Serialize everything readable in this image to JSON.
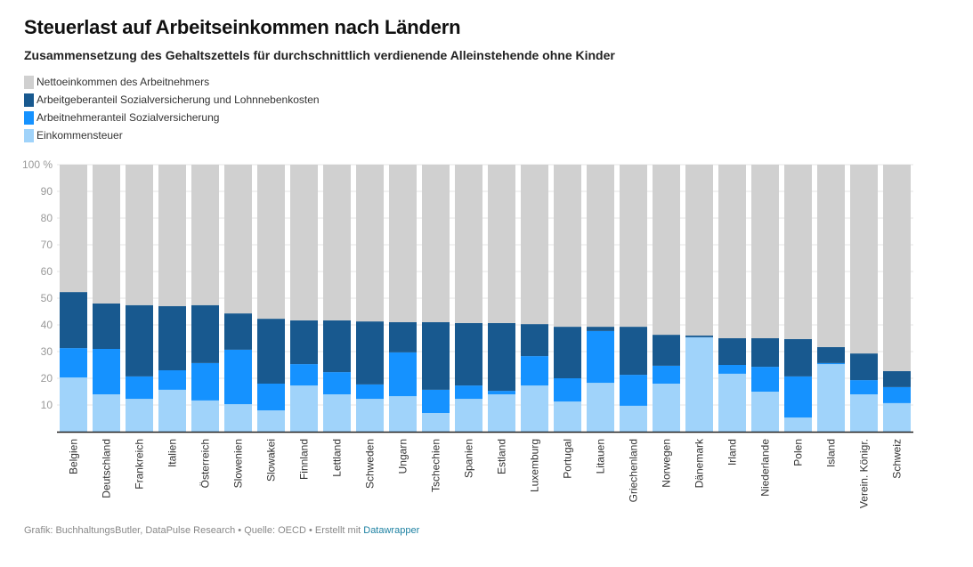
{
  "header": {
    "title": "Steuerlast auf Arbeitseinkommen nach Ländern",
    "subtitle": "Zusammensetzung des Gehaltszettels für durchschnittlich verdienende Alleinstehende ohne Kinder"
  },
  "legend": [
    {
      "label": "Nettoeinkommen des Arbeitnehmers",
      "color": "#d0d0d0"
    },
    {
      "label": "Arbeitgeberanteil Sozialversicherung und Lohnnebenkosten",
      "color": "#18598f"
    },
    {
      "label": "Arbeitnehmeranteil Sozialversicherung",
      "color": "#1592ff"
    },
    {
      "label": "Einkommensteuer",
      "color": "#a0d3fa"
    }
  ],
  "footer": {
    "text": "Grafik: BuchhaltungsButler, DataPulse Research • Quelle: OECD • Erstellt mit ",
    "link": "Datawrapper"
  },
  "chart_data": {
    "type": "bar",
    "stacked": true,
    "title": "Steuerlast auf Arbeitseinkommen nach Ländern",
    "subtitle": "Zusammensetzung des Gehaltszettels für durchschnittlich verdienende Alleinstehende ohne Kinder",
    "xlabel": "",
    "ylabel": "",
    "ylim": [
      0,
      100
    ],
    "yticks": [
      10,
      20,
      30,
      40,
      50,
      60,
      70,
      80,
      90,
      100
    ],
    "ytick_labels": [
      "10",
      "20",
      "30",
      "40",
      "50",
      "60",
      "70",
      "80",
      "90",
      "100 %"
    ],
    "grid": true,
    "legend_position": "top-left",
    "categories": [
      "Belgien",
      "Deutschland",
      "Frankreich",
      "Italien",
      "Österreich",
      "Slowenien",
      "Slowakei",
      "Finnland",
      "Lettland",
      "Schweden",
      "Ungarn",
      "Tschechien",
      "Spanien",
      "Estland",
      "Luxemburg",
      "Portugal",
      "Litauen",
      "Griechenland",
      "Norwegen",
      "Dänemark",
      "Irland",
      "Niederlande",
      "Polen",
      "Island",
      "Verein. Königr.",
      "Schweiz"
    ],
    "series": [
      {
        "name": "Einkommensteuer",
        "color": "#a0d3fa",
        "values": [
          20.3,
          14.0,
          12.3,
          15.7,
          11.7,
          10.3,
          8.0,
          17.3,
          14.0,
          12.3,
          13.3,
          7.0,
          12.3,
          14.0,
          17.3,
          11.3,
          18.3,
          9.7,
          18.0,
          35.3,
          21.7,
          15.0,
          5.3,
          25.3,
          14.0,
          10.7
        ]
      },
      {
        "name": "Arbeitnehmeranteil Sozialversicherung",
        "color": "#1592ff",
        "values": [
          11.0,
          17.0,
          8.4,
          7.3,
          14.0,
          20.4,
          10.0,
          8.0,
          8.3,
          5.4,
          16.4,
          8.7,
          5.0,
          1.3,
          11.0,
          8.7,
          19.4,
          11.6,
          6.7,
          0.1,
          3.3,
          9.3,
          15.4,
          0.4,
          5.3,
          6.0
        ]
      },
      {
        "name": "Arbeitgeberanteil Sozialversicherung und Lohnnebenkosten",
        "color": "#18598f",
        "values": [
          21.0,
          17.0,
          26.7,
          24.0,
          21.7,
          13.6,
          24.3,
          16.4,
          19.4,
          23.6,
          11.3,
          25.3,
          23.4,
          25.4,
          12.0,
          19.3,
          1.6,
          18.0,
          11.6,
          0.6,
          10.0,
          10.7,
          14.0,
          6.0,
          10.0,
          6.0
        ]
      },
      {
        "name": "Nettoeinkommen des Arbeitnehmers",
        "color": "#d0d0d0",
        "values": [
          47.7,
          52.0,
          52.6,
          53.0,
          52.6,
          55.7,
          57.7,
          58.3,
          58.3,
          58.7,
          59.0,
          59.0,
          59.3,
          59.3,
          59.7,
          60.7,
          60.7,
          60.7,
          63.7,
          64.0,
          65.0,
          65.0,
          65.3,
          68.3,
          70.7,
          77.3
        ]
      }
    ]
  }
}
